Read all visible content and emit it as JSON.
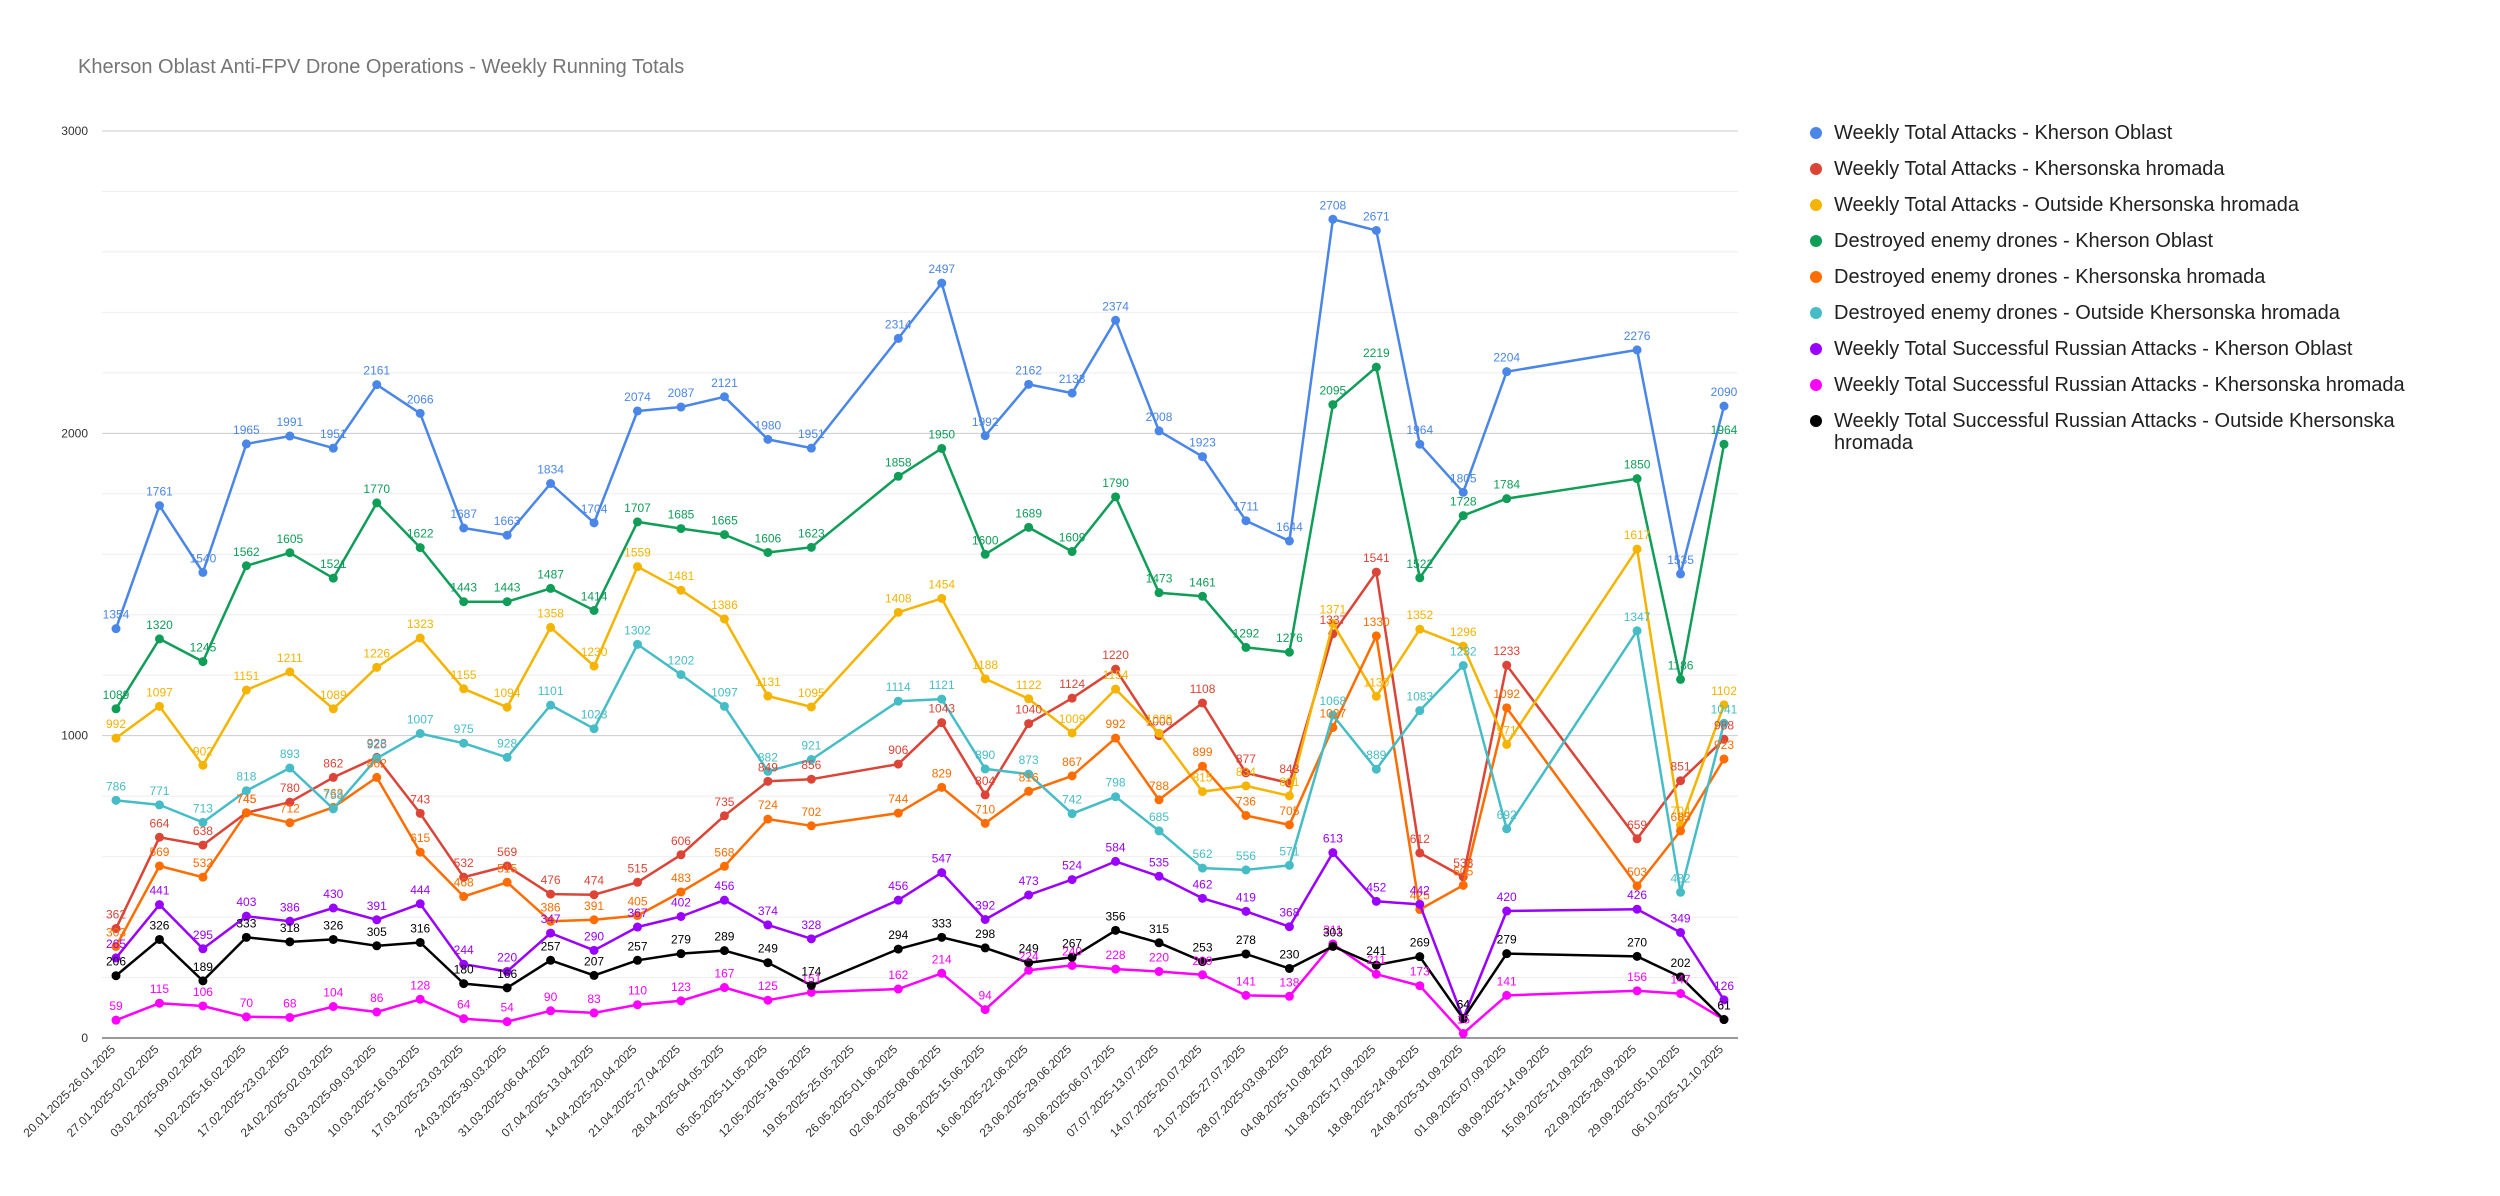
{
  "chart_data": {
    "type": "line",
    "title": "Kherson Oblast Anti-FPV Drone Operations - Weekly Running Totals",
    "xlabel": "",
    "ylabel": "",
    "ylim": [
      0,
      3000
    ],
    "y_ticks": [
      0,
      1000,
      2000,
      3000
    ],
    "grid": true,
    "legend_position": "right",
    "categories": [
      "20.01.2025-26.01.2025",
      "27.01.2025-02.02.2025",
      "03.02.2025-09.02.2025",
      "10.02.2025-16.02.2025",
      "17.02.2025-23.02.2025",
      "24.02.2025-02.03.2025",
      "03.03.2025-09.03.2025",
      "10.03.2025-16.03.2025",
      "17.03.2025-23.03.2025",
      "24.03.2025-30.03.2025",
      "31.03.2025-06.04.2025",
      "07.04.2025-13.04.2025",
      "14.04.2025-20.04.2025",
      "21.04.2025-27.04.2025",
      "28.04.2025-04.05.2025",
      "05.05.2025-11.05.2025",
      "12.05.2025-18.05.2025",
      "19.05.2025-25.05.2025",
      "26.05.2025-01.06.2025",
      "02.06.2025-08.06.2025",
      "09.06.2025-15.06.2025",
      "16.06.2025-22.06.2025",
      "23.06.2025-29.06.2025",
      "30.06.2025-06.07.2025",
      "07.07.2025-13.07.2025",
      "14.07.2025-20.07.2025",
      "21.07.2025-27.07.2025",
      "28.07.2025-03.08.2025",
      "04.08.2025-10.08.2025",
      "11.08.2025-17.08.2025",
      "18.08.2025-24.08.2025",
      "24.08.2025-31.09.2025",
      "01.09.2025-07.09.2025",
      "08.09.2025-14.09.2025",
      "15.09.2025-21.09.2025",
      "22.09.2025-28.09.2025",
      "29.09.2025-05.10.2025",
      "06.10.2025-12.10.2025"
    ],
    "series": [
      {
        "name": "Weekly Total Attacks - Kherson Oblast",
        "color": "#4a86e8",
        "values": [
          1354,
          1761,
          1540,
          1965,
          1991,
          1951,
          2161,
          2066,
          1687,
          1663,
          1834,
          1704,
          2074,
          2087,
          2121,
          1980,
          1951,
          null,
          2314,
          2497,
          1992,
          2162,
          2133,
          2374,
          2008,
          1923,
          1711,
          1644,
          2708,
          2671,
          1964,
          1805,
          2204,
          null,
          null,
          2276,
          1535,
          2090
        ]
      },
      {
        "name": "Weekly Total Attacks - Khersonska hromada",
        "color": "#db4437",
        "values": [
          362,
          664,
          638,
          745,
          780,
          862,
          928,
          743,
          532,
          569,
          476,
          474,
          515,
          606,
          735,
          849,
          856,
          null,
          906,
          1043,
          804,
          1040,
          1124,
          1220,
          1000,
          1108,
          877,
          843,
          1337,
          1541,
          612,
          533,
          1233,
          null,
          null,
          659,
          851,
          988
        ]
      },
      {
        "name": "Weekly Total Attacks - Outside Khersonska hromada",
        "color": "#f4b400",
        "values": [
          992,
          1097,
          902,
          1151,
          1211,
          1089,
          1226,
          1323,
          1155,
          1094,
          1358,
          1230,
          1559,
          1481,
          1386,
          1131,
          1095,
          null,
          1408,
          1454,
          1188,
          1122,
          1009,
          1154,
          1008,
          815,
          834,
          801,
          1371,
          1130,
          1352,
          1296,
          971,
          null,
          null,
          1617,
          704,
          1102
        ]
      },
      {
        "name": "Destroyed enemy drones - Kherson Oblast",
        "color": "#0f9d58",
        "values": [
          1089,
          1320,
          1245,
          1562,
          1605,
          1521,
          1770,
          1622,
          1443,
          1443,
          1487,
          1414,
          1707,
          1685,
          1665,
          1606,
          1623,
          null,
          1858,
          1950,
          1600,
          1689,
          1609,
          1790,
          1473,
          1461,
          1292,
          1276,
          2095,
          2219,
          1522,
          1728,
          1784,
          null,
          null,
          1850,
          1186,
          1964
        ]
      },
      {
        "name": "Destroyed enemy drones - Khersonska hromada",
        "color": "#ff6d00",
        "values": [
          303,
          569,
          532,
          745,
          712,
          763,
          862,
          615,
          468,
          515,
          386,
          391,
          405,
          483,
          568,
          724,
          702,
          null,
          744,
          829,
          710,
          816,
          867,
          992,
          788,
          899,
          736,
          705,
          1027,
          1330,
          425,
          505,
          1092,
          null,
          null,
          503,
          685,
          923
        ]
      },
      {
        "name": "Destroyed enemy drones - Outside Khersonska hromada",
        "color": "#46bdc6",
        "values": [
          786,
          771,
          713,
          818,
          893,
          758,
          925,
          1007,
          975,
          928,
          1101,
          1023,
          1302,
          1202,
          1097,
          882,
          921,
          null,
          1114,
          1121,
          890,
          873,
          742,
          798,
          685,
          562,
          556,
          571,
          1068,
          889,
          1083,
          1232,
          692,
          null,
          null,
          1347,
          482,
          1041
        ]
      },
      {
        "name": "Weekly Total Successful Russian Attacks - Kherson Oblast",
        "color": "#9900ff",
        "values": [
          265,
          441,
          295,
          403,
          386,
          430,
          391,
          444,
          244,
          220,
          347,
          290,
          367,
          402,
          456,
          374,
          328,
          null,
          456,
          547,
          392,
          473,
          524,
          584,
          535,
          462,
          419,
          368,
          613,
          452,
          442,
          64,
          420,
          null,
          null,
          426,
          349,
          126
        ]
      },
      {
        "name": "Weekly Total Successful Russian Attacks - Khersonska hromada",
        "color": "#ff00ff",
        "values": [
          59,
          115,
          106,
          70,
          68,
          104,
          86,
          128,
          64,
          54,
          90,
          83,
          110,
          123,
          167,
          125,
          151,
          null,
          162,
          214,
          94,
          224,
          240,
          228,
          220,
          209,
          141,
          138,
          311,
          211,
          173,
          15,
          141,
          null,
          null,
          156,
          147,
          61
        ]
      },
      {
        "name": "Weekly Total Successful Russian Attacks - Outside Khersonska hromada",
        "color": "#000000",
        "values": [
          206,
          326,
          189,
          333,
          318,
          326,
          305,
          316,
          180,
          166,
          257,
          207,
          257,
          279,
          289,
          249,
          174,
          null,
          294,
          333,
          298,
          249,
          267,
          356,
          315,
          253,
          278,
          230,
          303,
          241,
          269,
          64,
          279,
          null,
          null,
          270,
          202,
          61
        ]
      }
    ]
  },
  "legend": {
    "items": [
      "Weekly Total Attacks - Kherson Oblast",
      "Weekly Total Attacks - Khersonska hromada",
      "Weekly Total Attacks - Outside Khersonska hromada",
      "Destroyed enemy drones - Kherson Oblast",
      "Destroyed enemy drones - Khersonska hromada",
      "Destroyed enemy drones - Outside Khersonska hromada",
      "Weekly Total Successful Russian Attacks - Kherson Oblast",
      "Weekly Total Successful Russian Attacks - Khersonska hromada",
      "Weekly Total Successful Russian Attacks - Outside Khersonska hromada"
    ]
  }
}
